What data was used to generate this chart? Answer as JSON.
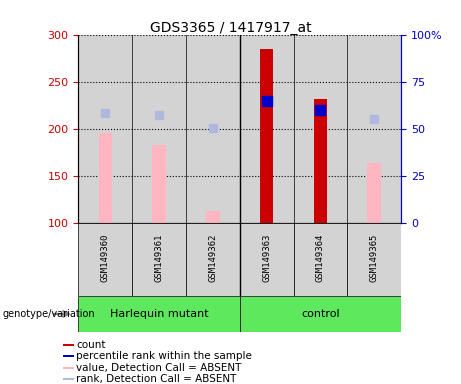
{
  "title": "GDS3365 / 1417917_at",
  "samples": [
    "GSM149360",
    "GSM149361",
    "GSM149362",
    "GSM149363",
    "GSM149364",
    "GSM149365"
  ],
  "group_labels": [
    "Harlequin mutant",
    "control"
  ],
  "ylim_left": [
    100,
    300
  ],
  "ylim_right": [
    0,
    100
  ],
  "yticks_left": [
    100,
    150,
    200,
    250,
    300
  ],
  "yticks_right": [
    0,
    25,
    50,
    75,
    100
  ],
  "bar_base": 100,
  "count_values": [
    null,
    null,
    null,
    285,
    232,
    null
  ],
  "count_color": "#CC0000",
  "rank_values": [
    null,
    null,
    null,
    229,
    220,
    null
  ],
  "rank_color": "#0000CC",
  "value_absent": [
    195,
    183,
    112,
    null,
    null,
    163
  ],
  "value_absent_color": "#FFB6C1",
  "rank_absent": [
    217,
    215,
    201,
    null,
    null,
    210
  ],
  "rank_absent_color": "#B0B8E0",
  "left_tick_color": "#CC0000",
  "right_tick_color": "#0000CC",
  "bg_color": "#D3D3D3",
  "legend_items": [
    {
      "label": "count",
      "color": "#CC0000"
    },
    {
      "label": "percentile rank within the sample",
      "color": "#0000CC"
    },
    {
      "label": "value, Detection Call = ABSENT",
      "color": "#FFB6C1"
    },
    {
      "label": "rank, Detection Call = ABSENT",
      "color": "#B0B8E0"
    }
  ]
}
